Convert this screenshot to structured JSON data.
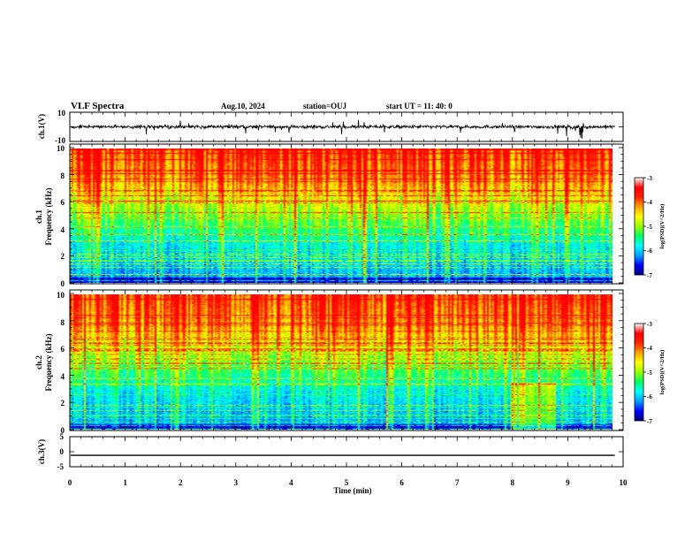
{
  "header": {
    "title": "VLF Spectra",
    "date": "Aug.10, 2024",
    "station": "station=OUJ",
    "start_ut": "start  UT =   11: 40: 0"
  },
  "colors": {
    "colormap": [
      "#00007f",
      "#0000ff",
      "#00a0ff",
      "#00ffff",
      "#00ff60",
      "#9bff00",
      "#ffff00",
      "#ffa000",
      "#ff2000",
      "#ff0000",
      "#ffffff"
    ]
  },
  "chart_data": [
    {
      "id": "ch1-waveform",
      "type": "line",
      "ylabel": "ch.1(V)",
      "ylim": [
        -10,
        10
      ],
      "yticks": [
        "10",
        "-10"
      ],
      "baseline": 0,
      "xlim": [
        0,
        10
      ]
    },
    {
      "id": "ch1-spectrogram",
      "type": "heatmap",
      "ylabel_top": "ch.1",
      "ylabel": "Frequency (kHz)",
      "ylim": [
        0,
        10
      ],
      "yticks": [
        "0",
        "2",
        "4",
        "6",
        "8",
        "10"
      ],
      "xlim": [
        0,
        10
      ],
      "data_end_min": 9.85,
      "colorbar": {
        "label": "log(PSD)(V^2/Hz)",
        "range": [
          -7,
          -3
        ],
        "ticks": [
          "-3",
          "-4",
          "-5",
          "-6",
          "-7"
        ]
      }
    },
    {
      "id": "ch2-spectrogram",
      "type": "heatmap",
      "ylabel_top": "ch.2",
      "ylabel": "Frequency (kHz)",
      "ylim": [
        0,
        10
      ],
      "yticks": [
        "0",
        "2",
        "4",
        "6",
        "8",
        "10"
      ],
      "xlim": [
        0,
        10
      ],
      "data_end_min": 9.85,
      "colorbar": {
        "label": "log(PSD)(V^2/Hz)",
        "range": [
          -7,
          -3
        ],
        "ticks": [
          "-3",
          "-4",
          "-5",
          "-6",
          "-7"
        ]
      }
    },
    {
      "id": "ch3-waveform",
      "type": "line",
      "ylabel": "ch.3(V)",
      "ylim": [
        -5,
        5
      ],
      "yticks": [
        "5",
        "0",
        "-5"
      ],
      "baseline": -1.2,
      "xlim": [
        0,
        10
      ],
      "xlabel": "Time (min)",
      "xticks": [
        "0",
        "1",
        "2",
        "3",
        "4",
        "5",
        "6",
        "7",
        "8",
        "9",
        "10"
      ]
    }
  ]
}
